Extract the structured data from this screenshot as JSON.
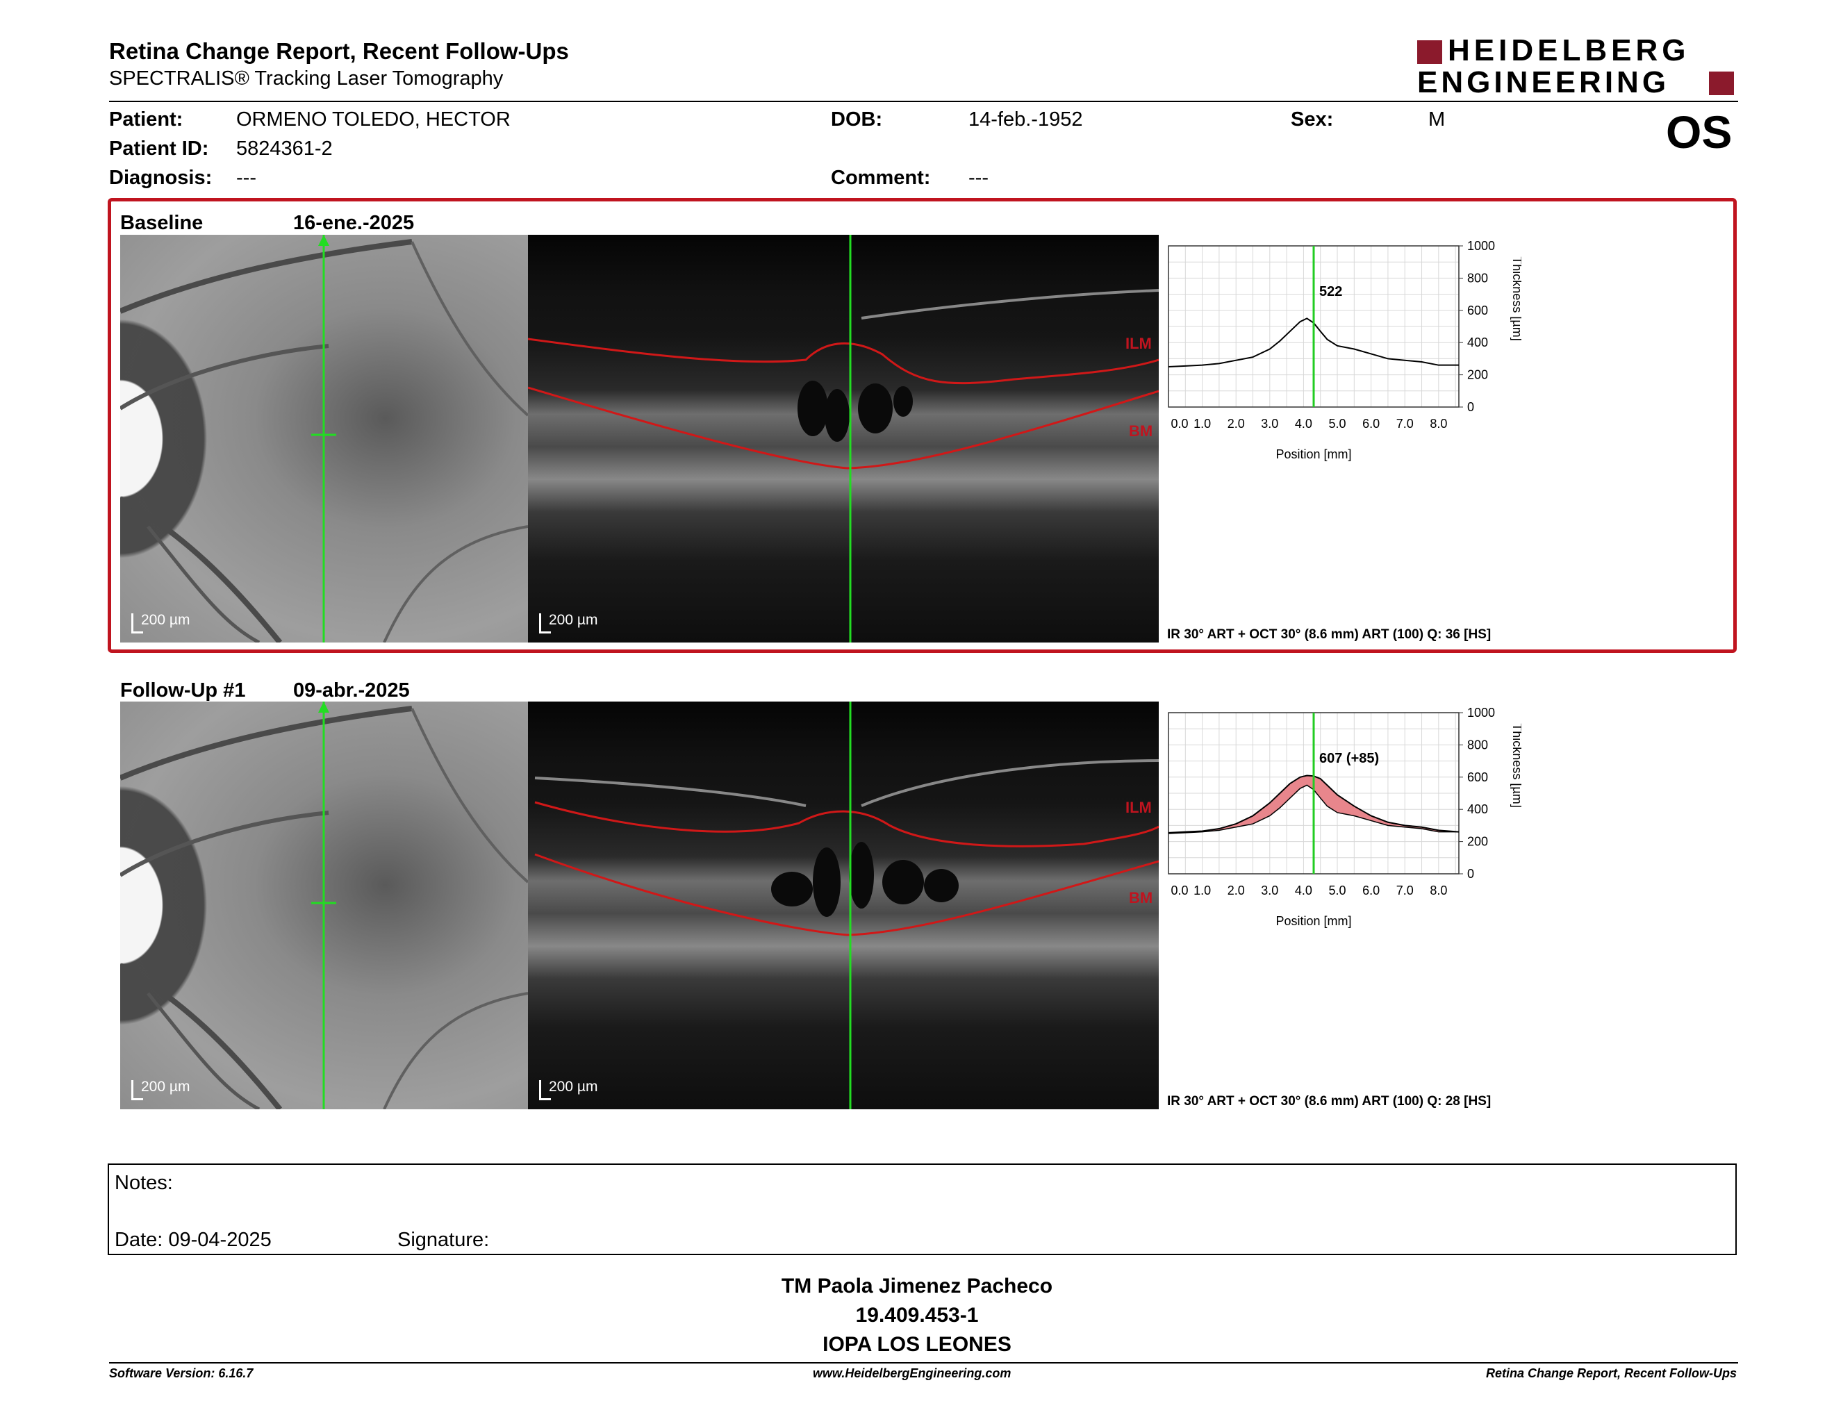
{
  "header": {
    "title": "Retina Change Report, Recent Follow-Ups",
    "subtitle": "SPECTRALIS® Tracking Laser Tomography",
    "logo_line1": "HEIDELBERG",
    "logo_line2": "ENGINEERING",
    "eye": "OS"
  },
  "patient": {
    "name_label": "Patient:",
    "name": "ORMENO TOLEDO, HECTOR",
    "id_label": "Patient ID:",
    "id": "5824361-2",
    "diagnosis_label": "Diagnosis:",
    "diagnosis": "---",
    "dob_label": "DOB:",
    "dob": "14-feb.-1952",
    "comment_label": "Comment:",
    "comment": "---",
    "sex_label": "Sex:",
    "sex": "M"
  },
  "scans": [
    {
      "label": "Baseline",
      "date": "16-ene.-2025",
      "scale_fundus": "200 µm",
      "scale_oct": "200 µm",
      "ilm": "ILM",
      "bm": "BM",
      "acquisition": "IR 30° ART + OCT 30° (8.6 mm) ART (100) Q: 36 [HS]",
      "thickness_value_label": "522"
    },
    {
      "label": "Follow-Up #1",
      "date": "09-abr.-2025",
      "scale_fundus": "200 µm",
      "scale_oct": "200 µm",
      "ilm": "ILM",
      "bm": "BM",
      "acquisition": "IR 30° ART + OCT 30° (8.6 mm) ART (100) Q: 28 [HS]",
      "thickness_value_label": "607 (+85)"
    }
  ],
  "chart_data": [
    {
      "type": "line",
      "xlabel": "Position [mm]",
      "ylabel": "Thickness [µm]",
      "x_ticks": [
        "0.0",
        "1.0",
        "2.0",
        "3.0",
        "4.0",
        "5.0",
        "6.0",
        "7.0",
        "8.0"
      ],
      "y_ticks": [
        "0",
        "200",
        "400",
        "600",
        "800",
        "1000"
      ],
      "xlim": [
        0,
        8.6
      ],
      "ylim": [
        0,
        1000
      ],
      "grid": true,
      "marker_x": 4.3,
      "annotation": "522",
      "series": [
        {
          "x": [
            0.0,
            0.5,
            1.0,
            1.5,
            2.0,
            2.5,
            3.0,
            3.3,
            3.6,
            3.9,
            4.1,
            4.3,
            4.5,
            4.7,
            5.0,
            5.5,
            6.0,
            6.5,
            7.0,
            7.5,
            8.0,
            8.6
          ],
          "y": [
            250,
            255,
            260,
            270,
            290,
            310,
            360,
            410,
            470,
            530,
            550,
            522,
            470,
            420,
            380,
            360,
            330,
            300,
            290,
            280,
            260,
            260
          ]
        }
      ]
    },
    {
      "type": "area",
      "xlabel": "Position [mm]",
      "ylabel": "Thickness [µm]",
      "x_ticks": [
        "0.0",
        "1.0",
        "2.0",
        "3.0",
        "4.0",
        "5.0",
        "6.0",
        "7.0",
        "8.0"
      ],
      "y_ticks": [
        "0",
        "200",
        "400",
        "600",
        "800",
        "1000"
      ],
      "xlim": [
        0,
        8.6
      ],
      "ylim": [
        0,
        1000
      ],
      "grid": true,
      "marker_x": 4.3,
      "annotation": "607 (+85)",
      "series": [
        {
          "x": [
            0.0,
            0.5,
            1.0,
            1.5,
            2.0,
            2.5,
            3.0,
            3.3,
            3.6,
            3.9,
            4.1,
            4.3,
            4.5,
            4.7,
            5.0,
            5.5,
            6.0,
            6.5,
            7.0,
            7.5,
            8.0,
            8.6
          ],
          "y": [
            255,
            260,
            265,
            280,
            310,
            360,
            440,
            500,
            560,
            600,
            610,
            607,
            590,
            550,
            490,
            420,
            360,
            320,
            300,
            290,
            270,
            260
          ]
        },
        {
          "x": [
            0.0,
            0.5,
            1.0,
            1.5,
            2.0,
            2.5,
            3.0,
            3.3,
            3.6,
            3.9,
            4.1,
            4.3,
            4.5,
            4.7,
            5.0,
            5.5,
            6.0,
            6.5,
            7.0,
            7.5,
            8.0,
            8.6
          ],
          "y": [
            250,
            255,
            260,
            270,
            290,
            310,
            360,
            410,
            470,
            530,
            550,
            522,
            470,
            420,
            380,
            360,
            330,
            300,
            290,
            280,
            260,
            260
          ]
        }
      ],
      "colors": {
        "fill": "#e8868c",
        "line": "#000000"
      }
    }
  ],
  "notes": {
    "notes_label": "Notes:",
    "date_label": "Date: 09-04-2025",
    "signature_label": "Signature:"
  },
  "signature": {
    "name": "TM Paola Jimenez Pacheco",
    "id": "19.409.453-1",
    "org": "IOPA LOS LEONES"
  },
  "footer": {
    "version": "Software Version: 6.16.7",
    "url": "www.HeidelbergEngineering.com",
    "report": "Retina Change Report, Recent Follow-Ups"
  }
}
